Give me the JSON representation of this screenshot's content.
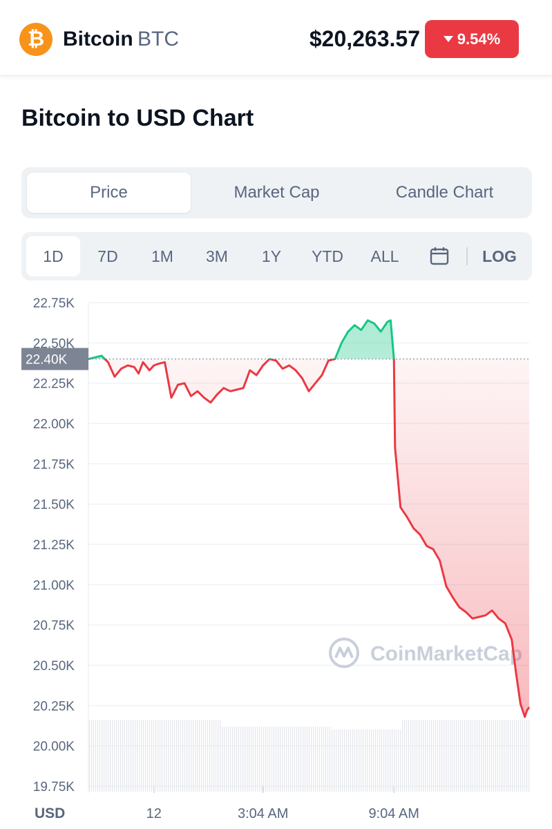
{
  "header": {
    "coin_name": "Bitcoin",
    "coin_symbol": "BTC",
    "price": "$20,263.57",
    "change": "9.54%",
    "logo_glyph": "₿",
    "logo_color": "#f7931a",
    "change_color": "#ea3943"
  },
  "section_title": "Bitcoin to USD Chart",
  "type_tabs": [
    {
      "label": "Price",
      "active": true
    },
    {
      "label": "Market Cap",
      "active": false
    },
    {
      "label": "Candle Chart",
      "active": false
    }
  ],
  "range_tabs": [
    {
      "label": "1D",
      "active": true
    },
    {
      "label": "7D",
      "active": false
    },
    {
      "label": "1M",
      "active": false
    },
    {
      "label": "3M",
      "active": false
    },
    {
      "label": "1Y",
      "active": false
    },
    {
      "label": "YTD",
      "active": false
    },
    {
      "label": "ALL",
      "active": false
    }
  ],
  "calendar_icon": "calendar-icon",
  "log_label": "LOG",
  "watermark": "CoinMarketCap",
  "chart_data": {
    "type": "line",
    "currency_label": "USD",
    "y_ticks": [
      "22.75K",
      "22.50K",
      "22.25K",
      "22.00K",
      "21.75K",
      "21.50K",
      "21.25K",
      "21.00K",
      "20.75K",
      "20.50K",
      "20.25K",
      "20.00K",
      "19.75K"
    ],
    "y_tick_values": [
      22750,
      22500,
      22250,
      22000,
      21750,
      21500,
      21250,
      21000,
      20750,
      20500,
      20250,
      20000,
      19750
    ],
    "ylim": [
      19750,
      22750
    ],
    "x_ticks": [
      "12",
      "3:04 AM",
      "9:04 AM"
    ],
    "x_tick_hours": [
      3.0,
      8.0,
      14.0
    ],
    "reference_label": "22.40K",
    "reference_value": 22400,
    "up_color": "#16c784",
    "down_color": "#ea3943",
    "grid": true,
    "series": [
      {
        "hours": [
          0,
          0.3,
          0.6,
          0.9,
          1.2,
          1.5,
          1.8,
          2.1,
          2.3,
          2.5,
          2.8,
          3.0,
          3.2,
          3.5,
          3.8,
          4.1,
          4.4,
          4.7,
          5.0,
          5.3,
          5.6,
          5.9,
          6.2,
          6.5,
          6.8,
          7.1,
          7.4,
          7.7,
          8.0,
          8.3,
          8.6,
          8.9,
          9.2,
          9.5,
          9.8,
          10.1,
          10.4,
          10.7,
          11.0,
          11.3,
          11.6,
          11.9,
          12.2,
          12.5,
          12.8,
          13.1,
          13.4,
          13.7,
          13.85,
          14.0,
          14.05,
          14.1,
          14.3,
          14.6,
          14.9,
          15.2,
          15.5,
          15.8,
          16.1,
          16.4,
          16.7,
          17.0,
          17.3,
          17.6,
          17.9,
          18.2,
          18.5,
          18.8,
          19.1,
          19.4,
          19.6,
          19.8,
          20.0,
          20.1,
          20.2
        ],
        "values": [
          22400,
          22410,
          22420,
          22380,
          22290,
          22340,
          22360,
          22350,
          22310,
          22380,
          22330,
          22360,
          22370,
          22380,
          22160,
          22240,
          22250,
          22170,
          22200,
          22160,
          22130,
          22180,
          22220,
          22200,
          22210,
          22220,
          22330,
          22300,
          22360,
          22400,
          22390,
          22340,
          22360,
          22330,
          22280,
          22200,
          22250,
          22300,
          22390,
          22400,
          22500,
          22570,
          22610,
          22580,
          22640,
          22620,
          22570,
          22630,
          22640,
          22400,
          21850,
          21780,
          21480,
          21420,
          21350,
          21310,
          21240,
          21220,
          21150,
          20990,
          20920,
          20860,
          20830,
          20790,
          20800,
          20810,
          20840,
          20790,
          20760,
          20660,
          20450,
          20260,
          20180,
          20220,
          20240
        ]
      }
    ]
  }
}
